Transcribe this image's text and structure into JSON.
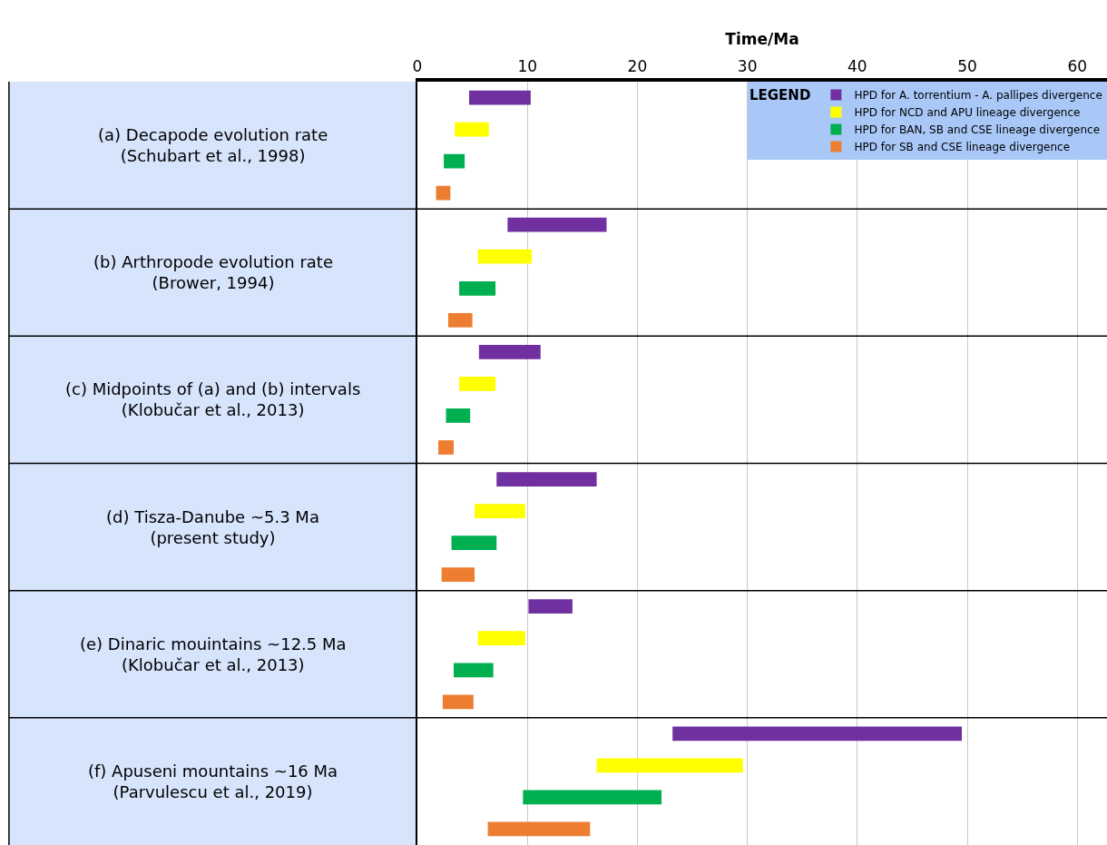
{
  "chart_data": {
    "type": "bar",
    "orientation": "horizontal",
    "xlabel": "Time/Ma",
    "legend_title": "LEGEND",
    "legend": "top right",
    "grid": "x",
    "categories": [
      "(a) Decapode evolution rate\n(Schubart et al., 1998)",
      "(b) Arthropode evolution rate\n(Brower, 1994)",
      "(c) Midpoints of (a) and (b) intervals\n(Klobučar et al., 2013)",
      "(d) Tisza-Danube ~5.3 Ma\n(present study)",
      "(e) Dinaric mouintains ~12.5 Ma\n(Klobučar et al., 2013)",
      "(f) Apuseni mountains ~16 Ma\n(Parvulescu et al., 2019)"
    ],
    "xlim": [
      0,
      62.7
    ],
    "xticks": [
      0,
      10,
      20,
      30,
      40,
      50,
      60
    ],
    "series": [
      {
        "name": "HPD for A. torrentium - A. pallipes divergence",
        "color": "#7030a0",
        "base": [
          4.7,
          8.2,
          5.6,
          7.2,
          10.1,
          23.2
        ],
        "values": [
          5.6,
          9.0,
          5.6,
          9.1,
          4.0,
          26.3
        ]
      },
      {
        "name": "HPD for NCD and APU lineage divergence",
        "color": "#ffff00",
        "base": [
          3.4,
          5.5,
          3.8,
          5.2,
          5.5,
          16.3
        ],
        "values": [
          3.1,
          4.9,
          3.3,
          4.6,
          4.3,
          13.3
        ]
      },
      {
        "name": "HPD for BAN, SB and CSE lineage divergence",
        "color": "#00b050",
        "base": [
          2.4,
          3.8,
          2.6,
          3.1,
          3.3,
          9.6
        ],
        "values": [
          1.9,
          3.3,
          2.2,
          4.1,
          3.6,
          12.6
        ]
      },
      {
        "name": "HPD for SB and CSE lineage divergence",
        "color": "#ed7d31",
        "base": [
          1.7,
          2.8,
          1.9,
          2.2,
          2.3,
          6.4
        ],
        "values": [
          1.3,
          2.2,
          1.4,
          3.0,
          2.8,
          9.3
        ]
      }
    ]
  }
}
